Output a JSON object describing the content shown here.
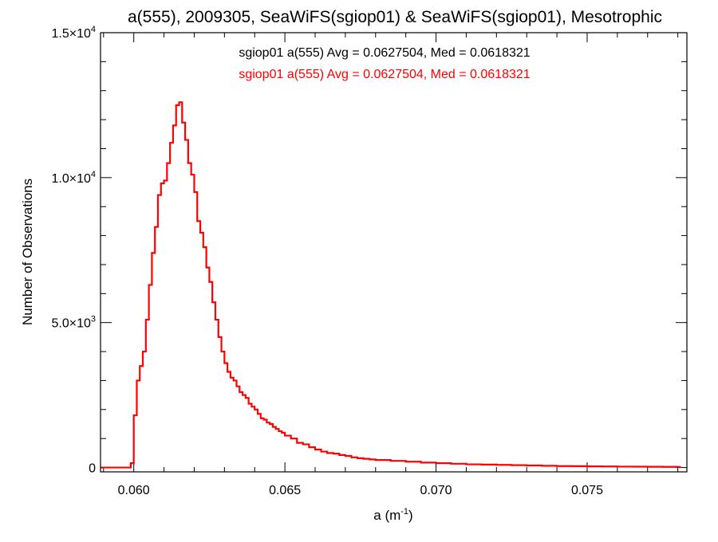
{
  "chart_data": {
    "type": "line",
    "title": "a(555), 2009305, SeaWiFS(sgiop01) & SeaWiFS(sgiop01), Mesotrophic",
    "xlabel": {
      "base": "a (m",
      "sup": "-1",
      "tail": ")"
    },
    "ylabel": "Number of Observations",
    "xlim": [
      0.0589,
      0.0783
    ],
    "ylim": [
      -150,
      15000
    ],
    "x_ticks": [
      {
        "value": 0.06,
        "label": "0.060"
      },
      {
        "value": 0.065,
        "label": "0.065"
      },
      {
        "value": 0.07,
        "label": "0.070"
      },
      {
        "value": 0.075,
        "label": "0.075"
      }
    ],
    "y_ticks": [
      {
        "value": 0,
        "base": "0",
        "exp": ""
      },
      {
        "value": 5000,
        "base": "5.0×10",
        "exp": "3"
      },
      {
        "value": 10000,
        "base": "1.0×10",
        "exp": "4"
      },
      {
        "value": 15000,
        "base": "1.5×10",
        "exp": "4"
      }
    ],
    "annotations": [
      {
        "text": "sgiop01 a(555) Avg = 0.0627504, Med = 0.0618321",
        "color": "#000000"
      },
      {
        "text": "sgiop01 a(555) Avg = 0.0627504, Med = 0.0618321",
        "color": "#ff0000"
      }
    ],
    "series": [
      {
        "color": "#ff0000",
        "style": "step",
        "bin_width": 0.0001,
        "x": [
          0.0589,
          0.059,
          0.0591,
          0.0592,
          0.0593,
          0.0594,
          0.0595,
          0.0596,
          0.0597,
          0.0598,
          0.0599,
          0.06,
          0.0601,
          0.0602,
          0.0603,
          0.0604,
          0.0605,
          0.0606,
          0.0607,
          0.0608,
          0.0609,
          0.061,
          0.0611,
          0.0612,
          0.0613,
          0.0614,
          0.0615,
          0.0616,
          0.0617,
          0.0618,
          0.0619,
          0.062,
          0.0621,
          0.0622,
          0.0623,
          0.0624,
          0.0625,
          0.0626,
          0.0627,
          0.0628,
          0.0629,
          0.063,
          0.0631,
          0.0632,
          0.0633,
          0.0634,
          0.0635,
          0.0636,
          0.0637,
          0.0638,
          0.0639,
          0.064,
          0.0641,
          0.0642,
          0.0643,
          0.0644,
          0.0645,
          0.0646,
          0.0647,
          0.0648,
          0.0649,
          0.065,
          0.0652,
          0.0654,
          0.0656,
          0.0658,
          0.066,
          0.0662,
          0.0664,
          0.0666,
          0.0668,
          0.067,
          0.0672,
          0.0674,
          0.0676,
          0.0678,
          0.068,
          0.0685,
          0.069,
          0.0695,
          0.07,
          0.0705,
          0.071,
          0.0715,
          0.072,
          0.0725,
          0.073,
          0.0735,
          0.074,
          0.0745,
          0.075,
          0.0755,
          0.076,
          0.0765,
          0.077,
          0.0775,
          0.078
        ],
        "y": [
          0,
          0,
          0,
          0,
          0,
          0,
          0,
          0,
          0,
          0,
          150,
          1800,
          3000,
          3500,
          4000,
          5100,
          6300,
          7400,
          8300,
          9400,
          9800,
          9900,
          10500,
          11200,
          11800,
          12500,
          12600,
          11900,
          11300,
          10500,
          10100,
          9500,
          8500,
          8100,
          7600,
          6900,
          6400,
          5700,
          5100,
          4500,
          4000,
          3600,
          3300,
          3100,
          3000,
          2800,
          2600,
          2500,
          2400,
          2200,
          2100,
          2000,
          1850,
          1700,
          1650,
          1550,
          1500,
          1400,
          1330,
          1250,
          1200,
          1100,
          1000,
          850,
          800,
          700,
          620,
          550,
          500,
          480,
          430,
          400,
          350,
          320,
          300,
          280,
          260,
          230,
          200,
          170,
          150,
          130,
          110,
          100,
          90,
          80,
          70,
          60,
          50,
          45,
          40,
          35,
          30,
          28,
          25,
          22,
          20
        ]
      }
    ]
  }
}
